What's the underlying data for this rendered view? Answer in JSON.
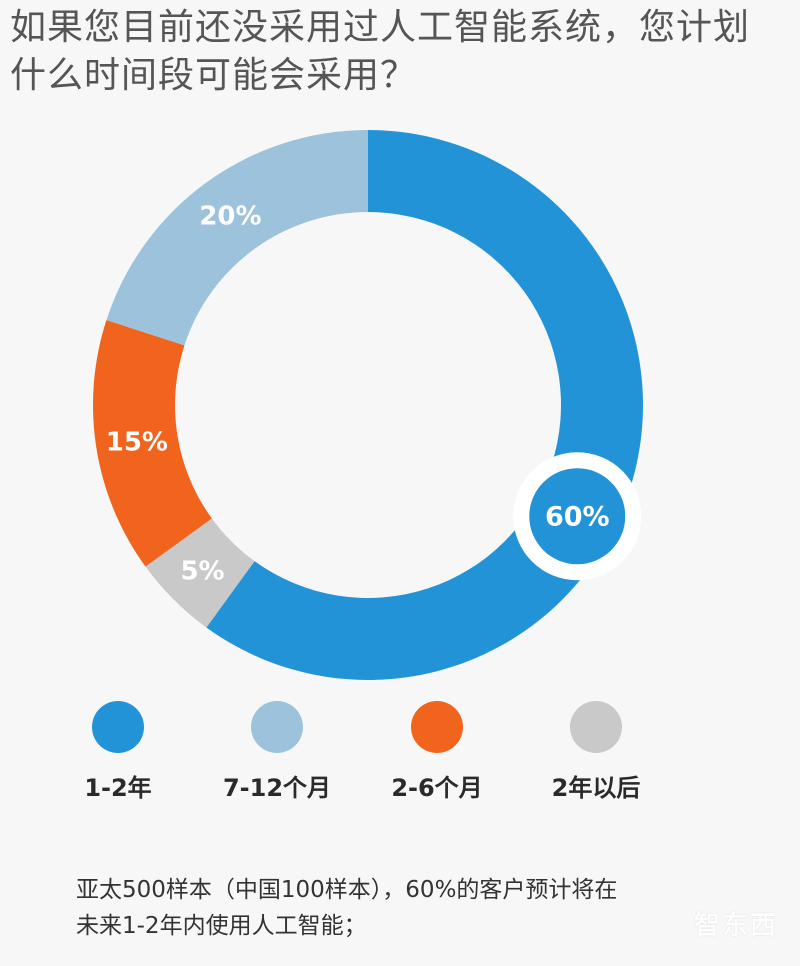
{
  "title_line1": "如果您目前还没采用过人工智能系统，您计划",
  "title_line2": "什么时间段可能会采用？",
  "chart_data": {
    "type": "pie",
    "style": "donut",
    "title": "如果您目前还没采用过人工智能系统，您计划什么时间段可能会采用？",
    "categories": [
      "1-2年",
      "2年以后",
      "2-6个月",
      "7-12个月"
    ],
    "values": [
      60,
      5,
      15,
      20
    ],
    "value_labels": [
      "60%",
      "5%",
      "15%",
      "20%"
    ],
    "colors": [
      "#2393d8",
      "#c9c9c9",
      "#f0641e",
      "#9cc2dc"
    ],
    "legend_position": "bottom"
  },
  "legend": [
    {
      "label": "1-2年",
      "color": "#2393d8"
    },
    {
      "label": "7-12个月",
      "color": "#9cc2dc"
    },
    {
      "label": "2-6个月",
      "color": "#f0641e"
    },
    {
      "label": "2年以后",
      "color": "#c9c9c9"
    }
  ],
  "footnote_line1": "亚太500样本（中国100样本），60%的客户预计将在",
  "footnote_line2": "未来1-2年内使用人工智能；",
  "watermark": "智东西"
}
